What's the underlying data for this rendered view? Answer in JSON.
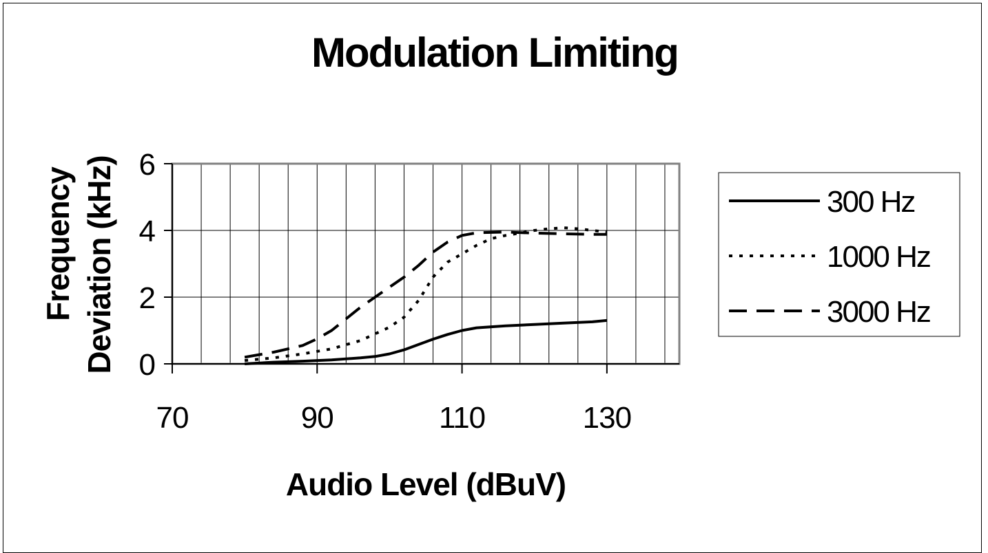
{
  "chart_data": {
    "type": "line",
    "title": "Modulation Limiting",
    "xlabel": "Audio Level (dBuV)",
    "ylabel": "Frequency Deviation (kHz)",
    "ylabel_lines": [
      "Frequency",
      "Deviation (kHz)"
    ],
    "xlim": [
      70,
      140
    ],
    "ylim": [
      0,
      6
    ],
    "x_ticks": [
      70,
      90,
      110,
      130
    ],
    "x_minor_step": 4,
    "y_ticks": [
      0,
      2,
      4,
      6
    ],
    "grid": "vertical-and-horizontal",
    "legend_position": "right",
    "series": [
      {
        "name": "300 Hz",
        "style": "solid",
        "x": [
          80,
          84,
          88,
          92,
          96,
          98,
          100,
          102,
          104,
          106,
          108,
          110,
          112,
          116,
          120,
          124,
          128,
          130
        ],
        "y": [
          0.0,
          0.05,
          0.08,
          0.12,
          0.18,
          0.22,
          0.3,
          0.42,
          0.58,
          0.74,
          0.88,
          1.0,
          1.08,
          1.14,
          1.18,
          1.22,
          1.26,
          1.3
        ]
      },
      {
        "name": "1000 Hz",
        "style": "dotted",
        "x": [
          80,
          84,
          88,
          92,
          96,
          98,
          100,
          102,
          104,
          106,
          108,
          110,
          112,
          114,
          116,
          118,
          120,
          122,
          124,
          126,
          128,
          130
        ],
        "y": [
          0.1,
          0.18,
          0.3,
          0.45,
          0.7,
          0.9,
          1.1,
          1.4,
          1.9,
          2.6,
          3.05,
          3.3,
          3.55,
          3.75,
          3.85,
          3.92,
          4.0,
          4.05,
          4.08,
          4.05,
          4.0,
          3.95
        ]
      },
      {
        "name": "3000 Hz",
        "style": "dashed",
        "x": [
          80,
          84,
          88,
          90,
          92,
          94,
          96,
          98,
          100,
          102,
          104,
          106,
          108,
          110,
          112,
          116,
          120,
          124,
          128,
          130
        ],
        "y": [
          0.2,
          0.35,
          0.55,
          0.75,
          1.0,
          1.35,
          1.7,
          2.0,
          2.3,
          2.6,
          2.95,
          3.35,
          3.65,
          3.85,
          3.93,
          3.95,
          3.92,
          3.9,
          3.88,
          3.88
        ]
      }
    ]
  }
}
